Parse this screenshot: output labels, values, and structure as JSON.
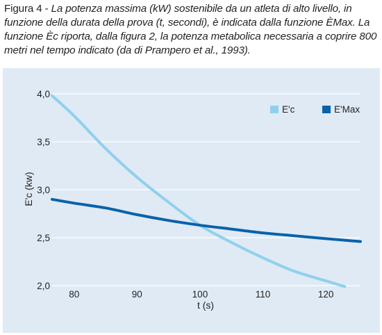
{
  "caption": {
    "label": "Figura 4 - ",
    "body": "La potenza massima (kW) sostenibile da un atleta di alto livello, in funzione della durata della prova (t, secondi), è indicata dalla funzione ÈMax. La funzione Èc riporta, dalla figura 2, la potenza metabolica necessaria a coprire 800 metri nel tempo indicato (da di Prampero et al., 1993)."
  },
  "chart_data": {
    "type": "line",
    "title": "",
    "xlabel": "t (s)",
    "ylabel": "E'c (kw)",
    "xlim": [
      76.5,
      125.5
    ],
    "ylim": [
      2.0,
      4.0
    ],
    "x_ticks": [
      80,
      90,
      100,
      110,
      120
    ],
    "x_tick_labels": [
      "80",
      "90",
      "100",
      "110",
      "120"
    ],
    "y_ticks": [
      2.0,
      2.5,
      3.0,
      3.5,
      4.0
    ],
    "y_tick_labels": [
      "2,0",
      "2,5",
      "3,0",
      "3,5",
      "4,0"
    ],
    "grid": "horizontal",
    "legend_position": "top-right",
    "series": [
      {
        "name": "E'c",
        "color": "#8fd0ee",
        "x": [
          76.5,
          80,
          85,
          90,
          95,
          100,
          105,
          110,
          115,
          120,
          123
        ],
        "y": [
          3.98,
          3.77,
          3.43,
          3.13,
          2.87,
          2.63,
          2.45,
          2.29,
          2.15,
          2.05,
          1.99
        ]
      },
      {
        "name": "E'Max",
        "color": "#0a62a9",
        "x": [
          76.5,
          80,
          85,
          90,
          95,
          100,
          105,
          110,
          115,
          120,
          125.5
        ],
        "y": [
          2.9,
          2.86,
          2.81,
          2.74,
          2.68,
          2.63,
          2.59,
          2.55,
          2.52,
          2.49,
          2.46
        ]
      }
    ]
  }
}
